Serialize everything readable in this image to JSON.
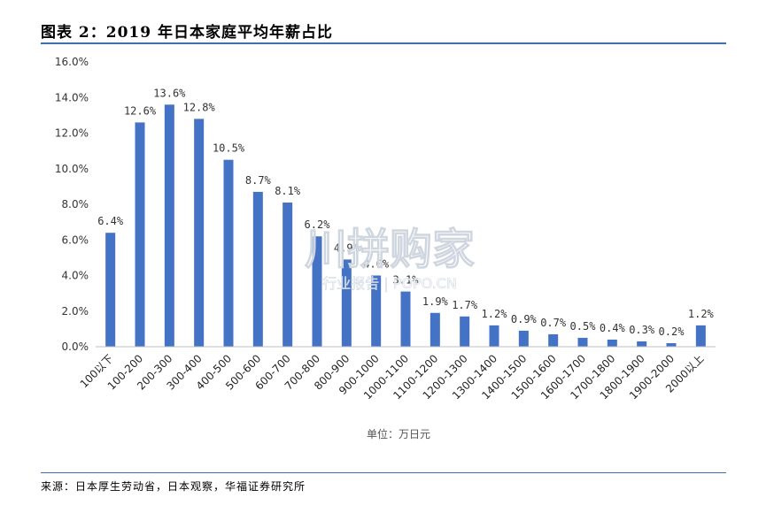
{
  "header": {
    "title": "图表 2：2019 年日本家庭平均年薪占比"
  },
  "footer": {
    "source": "来源：日本厚生劳动省，日本观察，华福证券研究所"
  },
  "watermark": {
    "main": "川拼购家",
    "sub": "行业报告 | POPO.CN"
  },
  "chart_data": {
    "type": "bar",
    "title": "2019 年日本家庭平均年薪占比",
    "unit_label": "单位：万日元",
    "categories": [
      "100以下",
      "100-200",
      "200-300",
      "300-400",
      "400-500",
      "500-600",
      "600-700",
      "700-800",
      "800-900",
      "900-1000",
      "1000-1100",
      "1100-1200",
      "1200-1300",
      "1300-1400",
      "1400-1500",
      "1500-1600",
      "1600-1700",
      "1700-1800",
      "1800-1900",
      "1900-2000",
      "2000以上"
    ],
    "values": [
      6.4,
      12.6,
      13.6,
      12.8,
      10.5,
      8.7,
      8.1,
      6.2,
      4.9,
      4.0,
      3.1,
      1.9,
      1.7,
      1.2,
      0.9,
      0.7,
      0.5,
      0.4,
      0.3,
      0.2,
      1.2
    ],
    "labels": [
      "6.4%",
      "12.6%",
      "13.6%",
      "12.8%",
      "10.5%",
      "8.7%",
      "8.1%",
      "6.2%",
      "4.9%",
      "4.0%",
      "3.1%",
      "1.9%",
      "1.7%",
      "1.2%",
      "0.9%",
      "0.7%",
      "0.5%",
      "0.4%",
      "0.3%",
      "0.2%",
      "1.2%"
    ],
    "yticks": [
      "0.0%",
      "2.0%",
      "4.0%",
      "6.0%",
      "8.0%",
      "10.0%",
      "12.0%",
      "14.0%",
      "16.0%"
    ],
    "ylim": [
      0,
      16
    ],
    "grid": false,
    "legend": "none",
    "bar_color": "#4472c4"
  }
}
